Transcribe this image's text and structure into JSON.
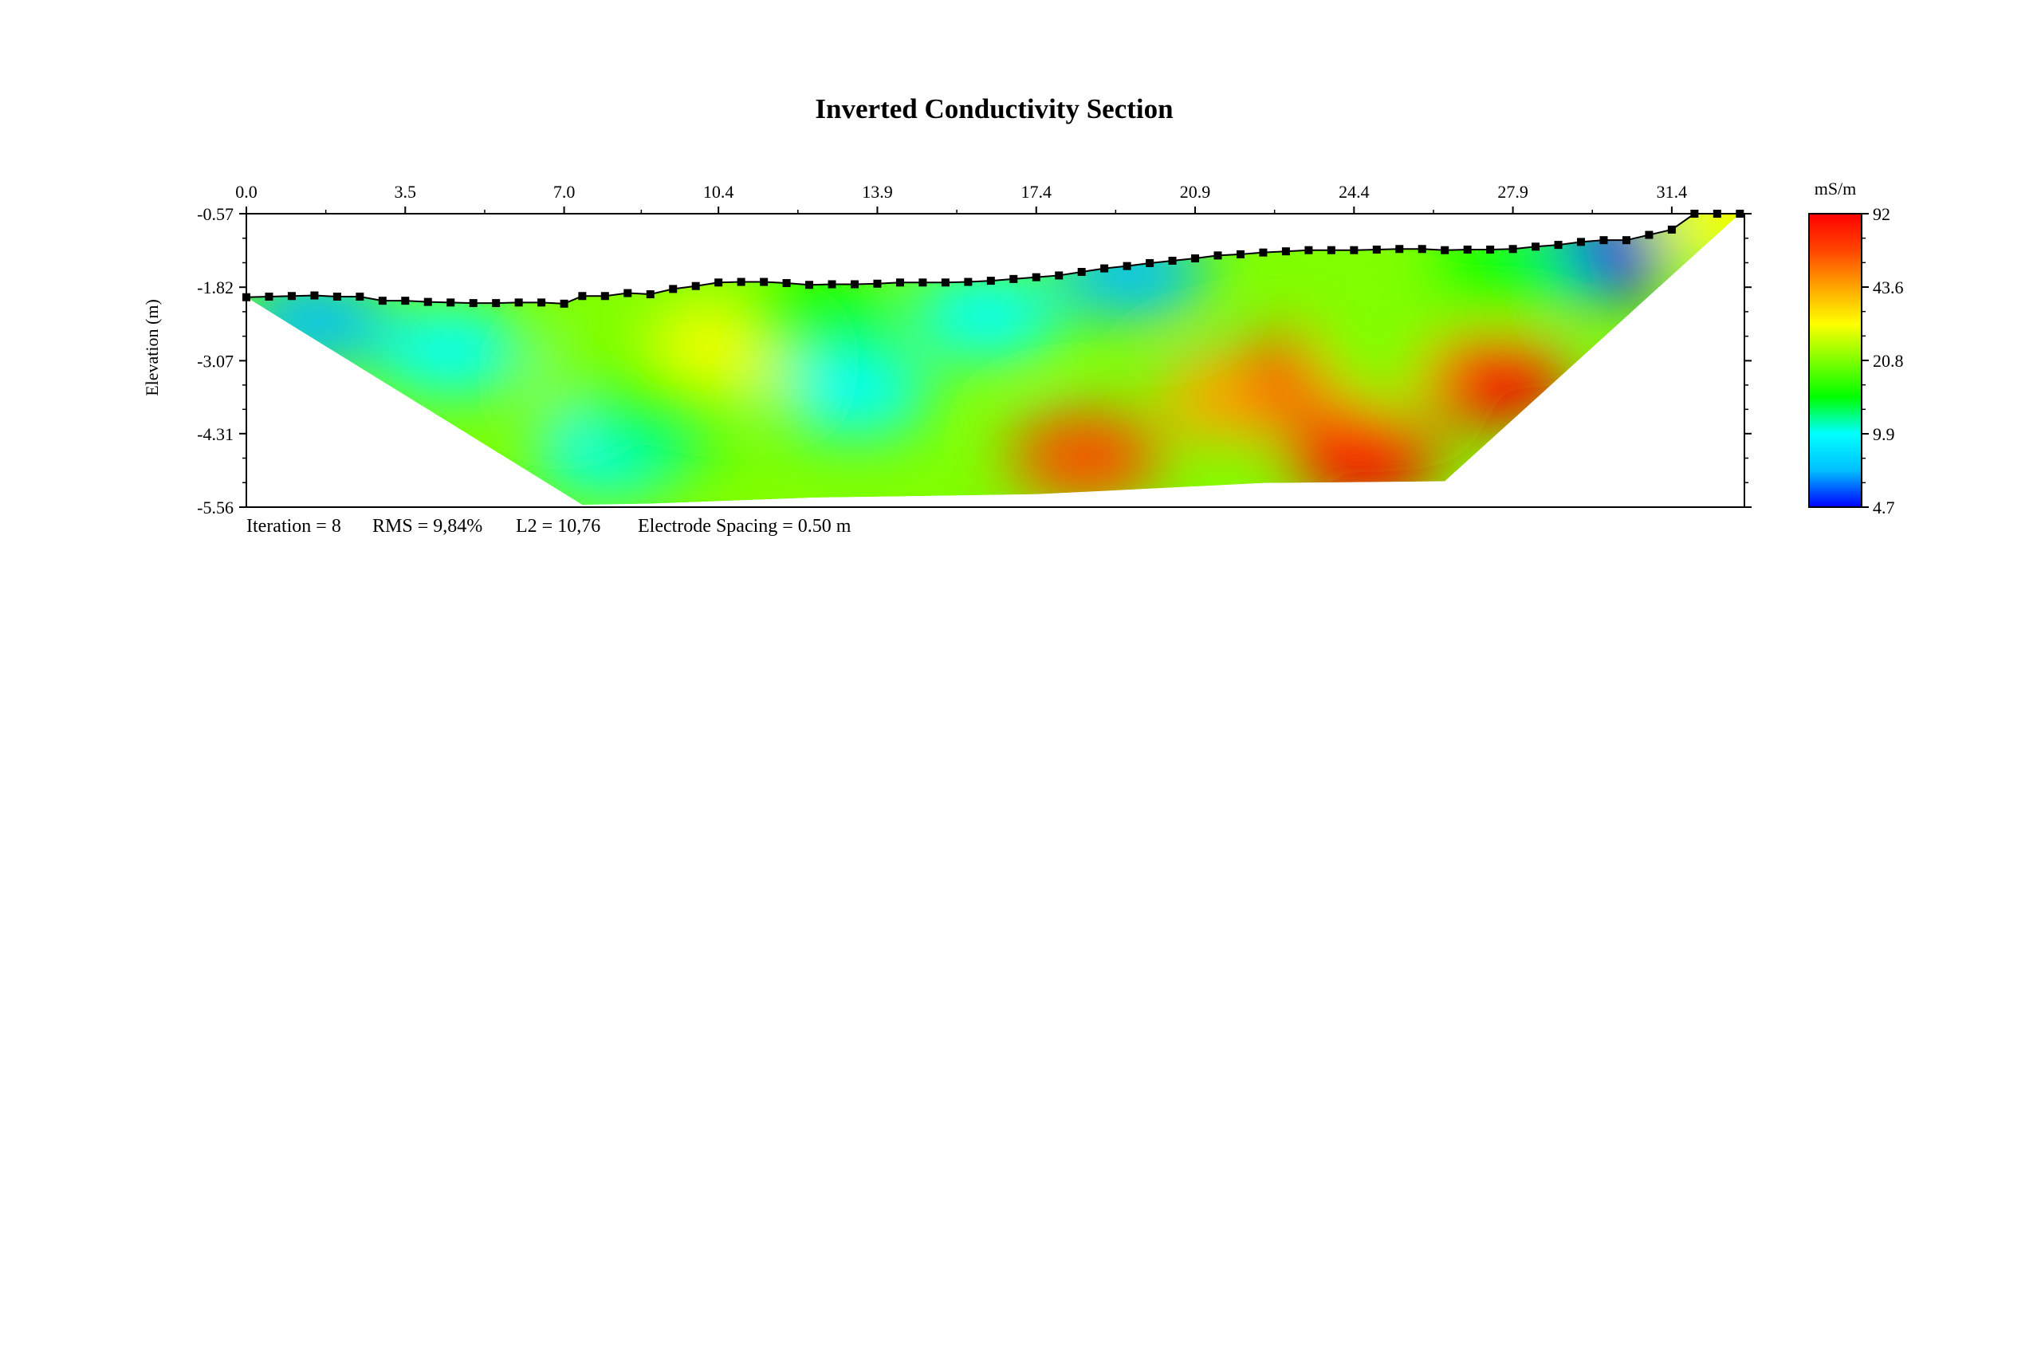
{
  "chart_data": {
    "type": "heatmap",
    "title": "Inverted Conductivity Section",
    "ylabel": "Elevation (m)",
    "x_ticks": [
      "0.0",
      "3.5",
      "7.0",
      "10.4",
      "13.9",
      "17.4",
      "20.9",
      "24.4",
      "27.9",
      "31.4"
    ],
    "y_ticks": [
      "-0.57",
      "-1.82",
      "-3.07",
      "-4.31",
      "-5.56"
    ],
    "xlim": [
      0,
      33
    ],
    "ylim": [
      -5.56,
      -0.57
    ],
    "colorbar": {
      "unit": "mS/m",
      "ticks": [
        "92",
        "43.6",
        "20.8",
        "9.9",
        "4.7"
      ],
      "range": [
        4.7,
        92
      ]
    },
    "colorscale": [
      "#0000ff",
      "#00bfff",
      "#00ffff",
      "#00ff00",
      "#7fff00",
      "#ffff00",
      "#ffa500",
      "#ff4500",
      "#ff0000"
    ],
    "footer": {
      "iteration": "Iteration = 8",
      "rms": "RMS = 9,84%",
      "l2": "L2 = 10,76",
      "spacing": "Electrode Spacing = 0.50 m"
    },
    "topography": [
      [
        0.0,
        -1.99
      ],
      [
        0.5,
        -1.98
      ],
      [
        1.0,
        -1.97
      ],
      [
        1.5,
        -1.96
      ],
      [
        2.0,
        -1.98
      ],
      [
        2.5,
        -1.98
      ],
      [
        3.0,
        -2.05
      ],
      [
        3.5,
        -2.05
      ],
      [
        4.0,
        -2.07
      ],
      [
        4.5,
        -2.08
      ],
      [
        5.0,
        -2.09
      ],
      [
        5.5,
        -2.09
      ],
      [
        6.0,
        -2.08
      ],
      [
        6.5,
        -2.08
      ],
      [
        7.0,
        -2.1
      ],
      [
        7.4,
        -1.97
      ],
      [
        7.9,
        -1.97
      ],
      [
        8.4,
        -1.92
      ],
      [
        8.9,
        -1.94
      ],
      [
        9.4,
        -1.85
      ],
      [
        9.9,
        -1.8
      ],
      [
        10.4,
        -1.74
      ],
      [
        10.9,
        -1.73
      ],
      [
        11.4,
        -1.73
      ],
      [
        11.9,
        -1.75
      ],
      [
        12.4,
        -1.78
      ],
      [
        12.9,
        -1.77
      ],
      [
        13.4,
        -1.77
      ],
      [
        13.9,
        -1.76
      ],
      [
        14.4,
        -1.74
      ],
      [
        14.9,
        -1.74
      ],
      [
        15.4,
        -1.74
      ],
      [
        15.9,
        -1.73
      ],
      [
        16.4,
        -1.71
      ],
      [
        16.9,
        -1.68
      ],
      [
        17.4,
        -1.65
      ],
      [
        17.9,
        -1.62
      ],
      [
        18.4,
        -1.56
      ],
      [
        18.9,
        -1.5
      ],
      [
        19.4,
        -1.46
      ],
      [
        19.9,
        -1.41
      ],
      [
        20.4,
        -1.37
      ],
      [
        20.9,
        -1.33
      ],
      [
        21.4,
        -1.28
      ],
      [
        21.9,
        -1.26
      ],
      [
        22.4,
        -1.23
      ],
      [
        22.9,
        -1.21
      ],
      [
        23.4,
        -1.19
      ],
      [
        23.9,
        -1.19
      ],
      [
        24.4,
        -1.19
      ],
      [
        24.9,
        -1.18
      ],
      [
        25.4,
        -1.17
      ],
      [
        25.9,
        -1.17
      ],
      [
        26.4,
        -1.19
      ],
      [
        26.9,
        -1.18
      ],
      [
        27.4,
        -1.18
      ],
      [
        27.9,
        -1.17
      ],
      [
        28.4,
        -1.13
      ],
      [
        28.9,
        -1.1
      ],
      [
        29.4,
        -1.05
      ],
      [
        29.9,
        -1.02
      ],
      [
        30.4,
        -1.02
      ],
      [
        30.9,
        -0.93
      ],
      [
        31.4,
        -0.84
      ],
      [
        31.9,
        -0.57
      ],
      [
        32.4,
        -0.57
      ],
      [
        32.9,
        -0.57
      ]
    ],
    "section_bottom": [
      [
        7.4,
        -5.52
      ],
      [
        8.9,
        -5.5
      ],
      [
        12.4,
        -5.4
      ],
      [
        17.4,
        -5.34
      ],
      [
        22.4,
        -5.15
      ],
      [
        26.4,
        -5.12
      ]
    ],
    "anomalies": [
      {
        "x": 1.5,
        "y": -2.4,
        "value": 8
      },
      {
        "x": 4.5,
        "y": -2.9,
        "value": 10
      },
      {
        "x": 8.0,
        "y": -3.4,
        "value": 19
      },
      {
        "x": 10.6,
        "y": -2.8,
        "value": 30
      },
      {
        "x": 13.4,
        "y": -3.6,
        "value": 10
      },
      {
        "x": 12.5,
        "y": -2.3,
        "value": 12
      },
      {
        "x": 8.0,
        "y": -4.6,
        "value": 9
      },
      {
        "x": 9.0,
        "y": -4.0,
        "value": 12
      },
      {
        "x": 16.3,
        "y": -2.3,
        "value": 10
      },
      {
        "x": 19.5,
        "y": -1.6,
        "value": 8
      },
      {
        "x": 18.5,
        "y": -4.7,
        "value": 55
      },
      {
        "x": 21.8,
        "y": -3.7,
        "value": 45
      },
      {
        "x": 23.6,
        "y": -3.3,
        "value": 75
      },
      {
        "x": 25.1,
        "y": -3.0,
        "value": 20
      },
      {
        "x": 27.5,
        "y": -3.4,
        "value": 88
      },
      {
        "x": 24.6,
        "y": -4.7,
        "value": 85
      },
      {
        "x": 29.6,
        "y": -1.3,
        "value": 5
      },
      {
        "x": 27.8,
        "y": -1.6,
        "value": 17
      },
      {
        "x": 32.6,
        "y": -0.65,
        "value": 28
      }
    ],
    "background_value": 19
  }
}
